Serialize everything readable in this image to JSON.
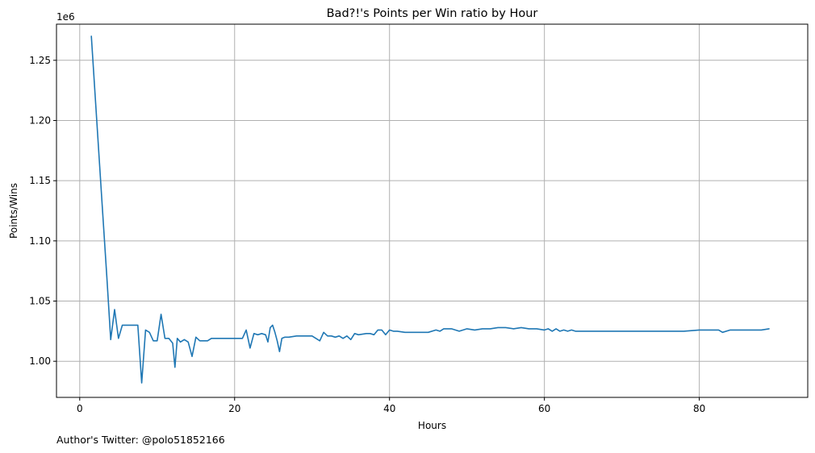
{
  "chart_data": {
    "type": "line",
    "title": "Bad?!'s Points per Win ratio by Hour",
    "xlabel": "Hours",
    "ylabel": "Points/Wins",
    "y_offset_label": "1e6",
    "xlim": [
      -3,
      94
    ],
    "ylim": [
      0.97,
      1.28
    ],
    "x_ticks": [
      0,
      20,
      40,
      60,
      80
    ],
    "x_tick_labels": [
      "0",
      "20",
      "40",
      "60",
      "80"
    ],
    "y_ticks": [
      1.0,
      1.05,
      1.1,
      1.15,
      1.2,
      1.25
    ],
    "y_tick_labels": [
      "1.00",
      "1.05",
      "1.10",
      "1.15",
      "1.20",
      "1.25"
    ],
    "grid": true,
    "series": [
      {
        "color": "#1f77b4",
        "x": [
          1.5,
          2.2,
          2.9,
          3.5,
          4.0,
          4.5,
          5.0,
          5.5,
          6.0,
          6.5,
          7.0,
          7.5,
          8.0,
          8.5,
          9.0,
          9.5,
          10.0,
          10.5,
          11.0,
          11.5,
          12.0,
          12.3,
          12.6,
          13.0,
          13.5,
          14.0,
          14.5,
          15.0,
          15.5,
          16.0,
          16.5,
          17.0,
          18.0,
          19.0,
          20.0,
          21.0,
          21.5,
          22.0,
          22.5,
          23.0,
          23.5,
          24.0,
          24.3,
          24.6,
          24.9,
          25.2,
          25.5,
          25.8,
          26.1,
          26.5,
          27.0,
          28.0,
          29.0,
          30.0,
          31.0,
          31.5,
          32.0,
          32.5,
          33.0,
          33.5,
          34.0,
          34.5,
          35.0,
          35.5,
          36.0,
          37.0,
          37.5,
          38.0,
          38.5,
          39.0,
          39.5,
          40.0,
          40.5,
          41.0,
          42.0,
          44.0,
          45.0,
          46.0,
          46.5,
          47.0,
          48.0,
          49.0,
          50.0,
          51.0,
          52.0,
          53.0,
          54.0,
          55.0,
          56.0,
          57.0,
          58.0,
          59.0,
          60.0,
          60.5,
          61.0,
          61.5,
          62.0,
          62.5,
          63.0,
          63.5,
          64.0,
          66.0,
          70.0,
          75.0,
          77.0,
          78.0,
          80.0,
          81.5,
          82.0,
          82.5,
          83.0,
          84.0,
          84.5,
          85.0,
          86.0,
          88.0,
          89.0
        ],
        "y": [
          1.27,
          1.2,
          1.13,
          1.07,
          1.018,
          1.043,
          1.019,
          1.03,
          1.03,
          1.03,
          1.03,
          1.03,
          0.982,
          1.026,
          1.024,
          1.017,
          1.017,
          1.039,
          1.019,
          1.019,
          1.015,
          0.995,
          1.019,
          1.016,
          1.018,
          1.016,
          1.004,
          1.02,
          1.017,
          1.017,
          1.017,
          1.019,
          1.019,
          1.019,
          1.019,
          1.019,
          1.026,
          1.011,
          1.023,
          1.022,
          1.023,
          1.022,
          1.016,
          1.028,
          1.03,
          1.024,
          1.017,
          1.008,
          1.019,
          1.02,
          1.02,
          1.021,
          1.021,
          1.021,
          1.017,
          1.024,
          1.021,
          1.021,
          1.02,
          1.021,
          1.019,
          1.021,
          1.018,
          1.023,
          1.022,
          1.023,
          1.023,
          1.022,
          1.026,
          1.026,
          1.022,
          1.026,
          1.025,
          1.025,
          1.024,
          1.024,
          1.024,
          1.026,
          1.025,
          1.027,
          1.027,
          1.025,
          1.027,
          1.026,
          1.027,
          1.027,
          1.028,
          1.028,
          1.027,
          1.028,
          1.027,
          1.027,
          1.026,
          1.027,
          1.025,
          1.027,
          1.025,
          1.026,
          1.025,
          1.026,
          1.025,
          1.025,
          1.025,
          1.025,
          1.025,
          1.025,
          1.026,
          1.026,
          1.026,
          1.026,
          1.024,
          1.026,
          1.026,
          1.026,
          1.026,
          1.026,
          1.027
        ]
      }
    ]
  },
  "footer_text": "Author's Twitter: @polo51852166"
}
